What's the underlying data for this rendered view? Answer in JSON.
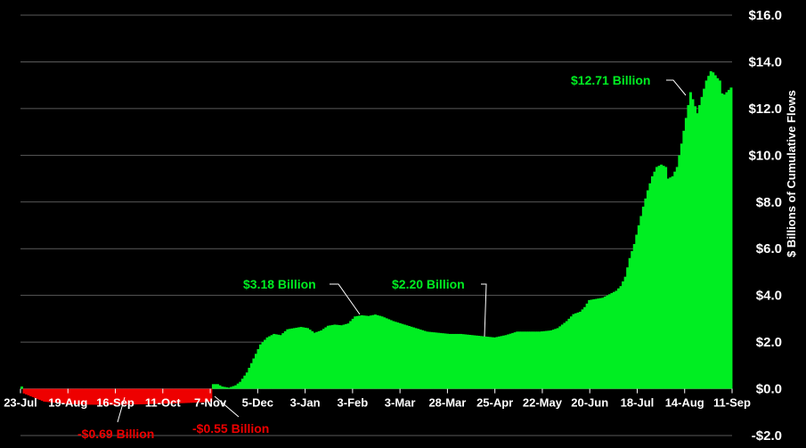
{
  "chart_data": {
    "type": "bar",
    "title": "",
    "xlabel": "",
    "ylabel": "$ Billions of Cumulative Flows",
    "ylim": [
      -2,
      16
    ],
    "y_ticks": [
      {
        "value": 16,
        "label": "$16.0"
      },
      {
        "value": 14,
        "label": "$14.0"
      },
      {
        "value": 12,
        "label": "$12.0"
      },
      {
        "value": 10,
        "label": "$10.0"
      },
      {
        "value": 8,
        "label": "$8.0"
      },
      {
        "value": 6,
        "label": "$6.0"
      },
      {
        "value": 4,
        "label": "$4.0"
      },
      {
        "value": 2,
        "label": "$2.0"
      },
      {
        "value": 0,
        "label": "$0.0"
      },
      {
        "value": -2,
        "label": "-$2.0"
      }
    ],
    "x_ticks": [
      "23-Jul",
      "19-Aug",
      "16-Sep",
      "11-Oct",
      "7-Nov",
      "5-Dec",
      "3-Jan",
      "3-Feb",
      "3-Mar",
      "28-Mar",
      "25-Apr",
      "22-May",
      "20-Jun",
      "18-Jul",
      "14-Aug",
      "11-Sep"
    ],
    "positive_color": "#00ee22",
    "negative_color": "#ee0000",
    "grid": true,
    "y_axis_side": "right",
    "keypoints": [
      [
        0,
        0.1
      ],
      [
        1,
        -0.2
      ],
      [
        10,
        -0.55
      ],
      [
        20,
        -0.65
      ],
      [
        30,
        -0.68
      ],
      [
        40,
        -0.69
      ],
      [
        55,
        -0.66
      ],
      [
        70,
        -0.62
      ],
      [
        80,
        -0.58
      ],
      [
        84,
        -0.55
      ],
      [
        85,
        0.2
      ],
      [
        87,
        0.2
      ],
      [
        89,
        0.1
      ],
      [
        92,
        0.05
      ],
      [
        95,
        0.15
      ],
      [
        97,
        0.3
      ],
      [
        100,
        0.7
      ],
      [
        103,
        1.3
      ],
      [
        106,
        1.9
      ],
      [
        109,
        2.2
      ],
      [
        112,
        2.35
      ],
      [
        115,
        2.3
      ],
      [
        118,
        2.55
      ],
      [
        121,
        2.6
      ],
      [
        124,
        2.65
      ],
      [
        127,
        2.6
      ],
      [
        130,
        2.4
      ],
      [
        133,
        2.5
      ],
      [
        136,
        2.7
      ],
      [
        139,
        2.75
      ],
      [
        142,
        2.72
      ],
      [
        145,
        2.8
      ],
      [
        148,
        3.1
      ],
      [
        151,
        3.15
      ],
      [
        154,
        3.12
      ],
      [
        157,
        3.18
      ],
      [
        160,
        3.1
      ],
      [
        165,
        2.9
      ],
      [
        170,
        2.75
      ],
      [
        175,
        2.6
      ],
      [
        180,
        2.45
      ],
      [
        185,
        2.4
      ],
      [
        190,
        2.35
      ],
      [
        195,
        2.35
      ],
      [
        200,
        2.3
      ],
      [
        205,
        2.25
      ],
      [
        210,
        2.2
      ],
      [
        215,
        2.3
      ],
      [
        220,
        2.45
      ],
      [
        225,
        2.45
      ],
      [
        230,
        2.45
      ],
      [
        235,
        2.5
      ],
      [
        238,
        2.6
      ],
      [
        242,
        2.9
      ],
      [
        245,
        3.2
      ],
      [
        248,
        3.3
      ],
      [
        250,
        3.5
      ],
      [
        252,
        3.8
      ],
      [
        255,
        3.85
      ],
      [
        258,
        3.9
      ],
      [
        261,
        4.05
      ],
      [
        264,
        4.2
      ],
      [
        266,
        4.4
      ],
      [
        268,
        4.8
      ],
      [
        270,
        5.6
      ],
      [
        272,
        6.2
      ],
      [
        274,
        7.0
      ],
      [
        276,
        7.8
      ],
      [
        278,
        8.5
      ],
      [
        280,
        9.1
      ],
      [
        282,
        9.5
      ],
      [
        284,
        9.6
      ],
      [
        286,
        9.5
      ],
      [
        287,
        9.0
      ],
      [
        289,
        9.1
      ],
      [
        291,
        9.5
      ],
      [
        293,
        10.5
      ],
      [
        295,
        11.6
      ],
      [
        297,
        12.7
      ],
      [
        298,
        12.4
      ],
      [
        300,
        11.8
      ],
      [
        302,
        12.5
      ],
      [
        304,
        13.2
      ],
      [
        306,
        13.6
      ],
      [
        307,
        13.55
      ],
      [
        309,
        13.3
      ],
      [
        310,
        13.2
      ],
      [
        311,
        12.65
      ],
      [
        312,
        12.6
      ],
      [
        313,
        12.7
      ],
      [
        315,
        12.9
      ]
    ],
    "annotations": [
      {
        "text": "-$0.69 Billion",
        "color": "#ee0000"
      },
      {
        "text": "-$0.55 Billion",
        "color": "#ee0000"
      },
      {
        "text": "$3.18 Billion",
        "color": "#00ee22"
      },
      {
        "text": "$2.20 Billion",
        "color": "#00ee22"
      },
      {
        "text": "$12.71 Billion",
        "color": "#00ee22"
      }
    ]
  }
}
